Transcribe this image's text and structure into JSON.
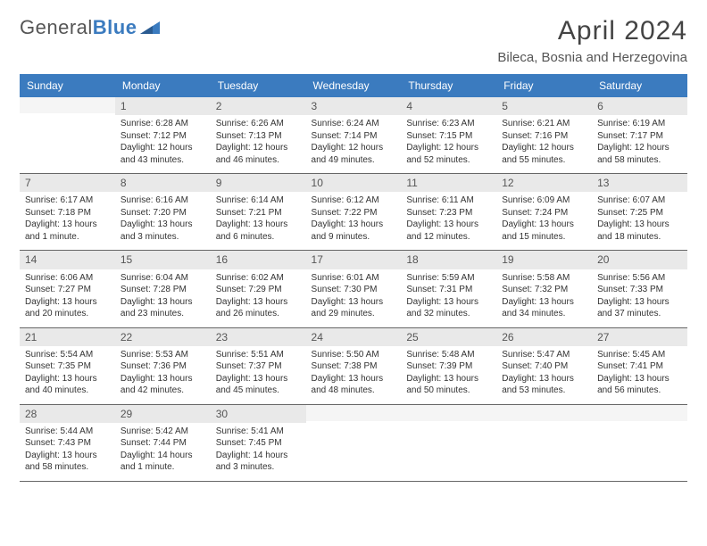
{
  "brand": {
    "part1": "General",
    "part2": "Blue"
  },
  "title": "April 2024",
  "location": "Bileca, Bosnia and Herzegovina",
  "colors": {
    "header_bg": "#3b7bbf",
    "header_fg": "#ffffff",
    "day_num_bg": "#e9e9e9",
    "border": "#888888",
    "text": "#333333"
  },
  "dayHeaders": [
    "Sunday",
    "Monday",
    "Tuesday",
    "Wednesday",
    "Thursday",
    "Friday",
    "Saturday"
  ],
  "weeks": [
    [
      {
        "n": "",
        "lines": []
      },
      {
        "n": "1",
        "lines": [
          "Sunrise: 6:28 AM",
          "Sunset: 7:12 PM",
          "Daylight: 12 hours",
          "and 43 minutes."
        ]
      },
      {
        "n": "2",
        "lines": [
          "Sunrise: 6:26 AM",
          "Sunset: 7:13 PM",
          "Daylight: 12 hours",
          "and 46 minutes."
        ]
      },
      {
        "n": "3",
        "lines": [
          "Sunrise: 6:24 AM",
          "Sunset: 7:14 PM",
          "Daylight: 12 hours",
          "and 49 minutes."
        ]
      },
      {
        "n": "4",
        "lines": [
          "Sunrise: 6:23 AM",
          "Sunset: 7:15 PM",
          "Daylight: 12 hours",
          "and 52 minutes."
        ]
      },
      {
        "n": "5",
        "lines": [
          "Sunrise: 6:21 AM",
          "Sunset: 7:16 PM",
          "Daylight: 12 hours",
          "and 55 minutes."
        ]
      },
      {
        "n": "6",
        "lines": [
          "Sunrise: 6:19 AM",
          "Sunset: 7:17 PM",
          "Daylight: 12 hours",
          "and 58 minutes."
        ]
      }
    ],
    [
      {
        "n": "7",
        "lines": [
          "Sunrise: 6:17 AM",
          "Sunset: 7:18 PM",
          "Daylight: 13 hours",
          "and 1 minute."
        ]
      },
      {
        "n": "8",
        "lines": [
          "Sunrise: 6:16 AM",
          "Sunset: 7:20 PM",
          "Daylight: 13 hours",
          "and 3 minutes."
        ]
      },
      {
        "n": "9",
        "lines": [
          "Sunrise: 6:14 AM",
          "Sunset: 7:21 PM",
          "Daylight: 13 hours",
          "and 6 minutes."
        ]
      },
      {
        "n": "10",
        "lines": [
          "Sunrise: 6:12 AM",
          "Sunset: 7:22 PM",
          "Daylight: 13 hours",
          "and 9 minutes."
        ]
      },
      {
        "n": "11",
        "lines": [
          "Sunrise: 6:11 AM",
          "Sunset: 7:23 PM",
          "Daylight: 13 hours",
          "and 12 minutes."
        ]
      },
      {
        "n": "12",
        "lines": [
          "Sunrise: 6:09 AM",
          "Sunset: 7:24 PM",
          "Daylight: 13 hours",
          "and 15 minutes."
        ]
      },
      {
        "n": "13",
        "lines": [
          "Sunrise: 6:07 AM",
          "Sunset: 7:25 PM",
          "Daylight: 13 hours",
          "and 18 minutes."
        ]
      }
    ],
    [
      {
        "n": "14",
        "lines": [
          "Sunrise: 6:06 AM",
          "Sunset: 7:27 PM",
          "Daylight: 13 hours",
          "and 20 minutes."
        ]
      },
      {
        "n": "15",
        "lines": [
          "Sunrise: 6:04 AM",
          "Sunset: 7:28 PM",
          "Daylight: 13 hours",
          "and 23 minutes."
        ]
      },
      {
        "n": "16",
        "lines": [
          "Sunrise: 6:02 AM",
          "Sunset: 7:29 PM",
          "Daylight: 13 hours",
          "and 26 minutes."
        ]
      },
      {
        "n": "17",
        "lines": [
          "Sunrise: 6:01 AM",
          "Sunset: 7:30 PM",
          "Daylight: 13 hours",
          "and 29 minutes."
        ]
      },
      {
        "n": "18",
        "lines": [
          "Sunrise: 5:59 AM",
          "Sunset: 7:31 PM",
          "Daylight: 13 hours",
          "and 32 minutes."
        ]
      },
      {
        "n": "19",
        "lines": [
          "Sunrise: 5:58 AM",
          "Sunset: 7:32 PM",
          "Daylight: 13 hours",
          "and 34 minutes."
        ]
      },
      {
        "n": "20",
        "lines": [
          "Sunrise: 5:56 AM",
          "Sunset: 7:33 PM",
          "Daylight: 13 hours",
          "and 37 minutes."
        ]
      }
    ],
    [
      {
        "n": "21",
        "lines": [
          "Sunrise: 5:54 AM",
          "Sunset: 7:35 PM",
          "Daylight: 13 hours",
          "and 40 minutes."
        ]
      },
      {
        "n": "22",
        "lines": [
          "Sunrise: 5:53 AM",
          "Sunset: 7:36 PM",
          "Daylight: 13 hours",
          "and 42 minutes."
        ]
      },
      {
        "n": "23",
        "lines": [
          "Sunrise: 5:51 AM",
          "Sunset: 7:37 PM",
          "Daylight: 13 hours",
          "and 45 minutes."
        ]
      },
      {
        "n": "24",
        "lines": [
          "Sunrise: 5:50 AM",
          "Sunset: 7:38 PM",
          "Daylight: 13 hours",
          "and 48 minutes."
        ]
      },
      {
        "n": "25",
        "lines": [
          "Sunrise: 5:48 AM",
          "Sunset: 7:39 PM",
          "Daylight: 13 hours",
          "and 50 minutes."
        ]
      },
      {
        "n": "26",
        "lines": [
          "Sunrise: 5:47 AM",
          "Sunset: 7:40 PM",
          "Daylight: 13 hours",
          "and 53 minutes."
        ]
      },
      {
        "n": "27",
        "lines": [
          "Sunrise: 5:45 AM",
          "Sunset: 7:41 PM",
          "Daylight: 13 hours",
          "and 56 minutes."
        ]
      }
    ],
    [
      {
        "n": "28",
        "lines": [
          "Sunrise: 5:44 AM",
          "Sunset: 7:43 PM",
          "Daylight: 13 hours",
          "and 58 minutes."
        ]
      },
      {
        "n": "29",
        "lines": [
          "Sunrise: 5:42 AM",
          "Sunset: 7:44 PM",
          "Daylight: 14 hours",
          "and 1 minute."
        ]
      },
      {
        "n": "30",
        "lines": [
          "Sunrise: 5:41 AM",
          "Sunset: 7:45 PM",
          "Daylight: 14 hours",
          "and 3 minutes."
        ]
      },
      {
        "n": "",
        "lines": []
      },
      {
        "n": "",
        "lines": []
      },
      {
        "n": "",
        "lines": []
      },
      {
        "n": "",
        "lines": []
      }
    ]
  ]
}
